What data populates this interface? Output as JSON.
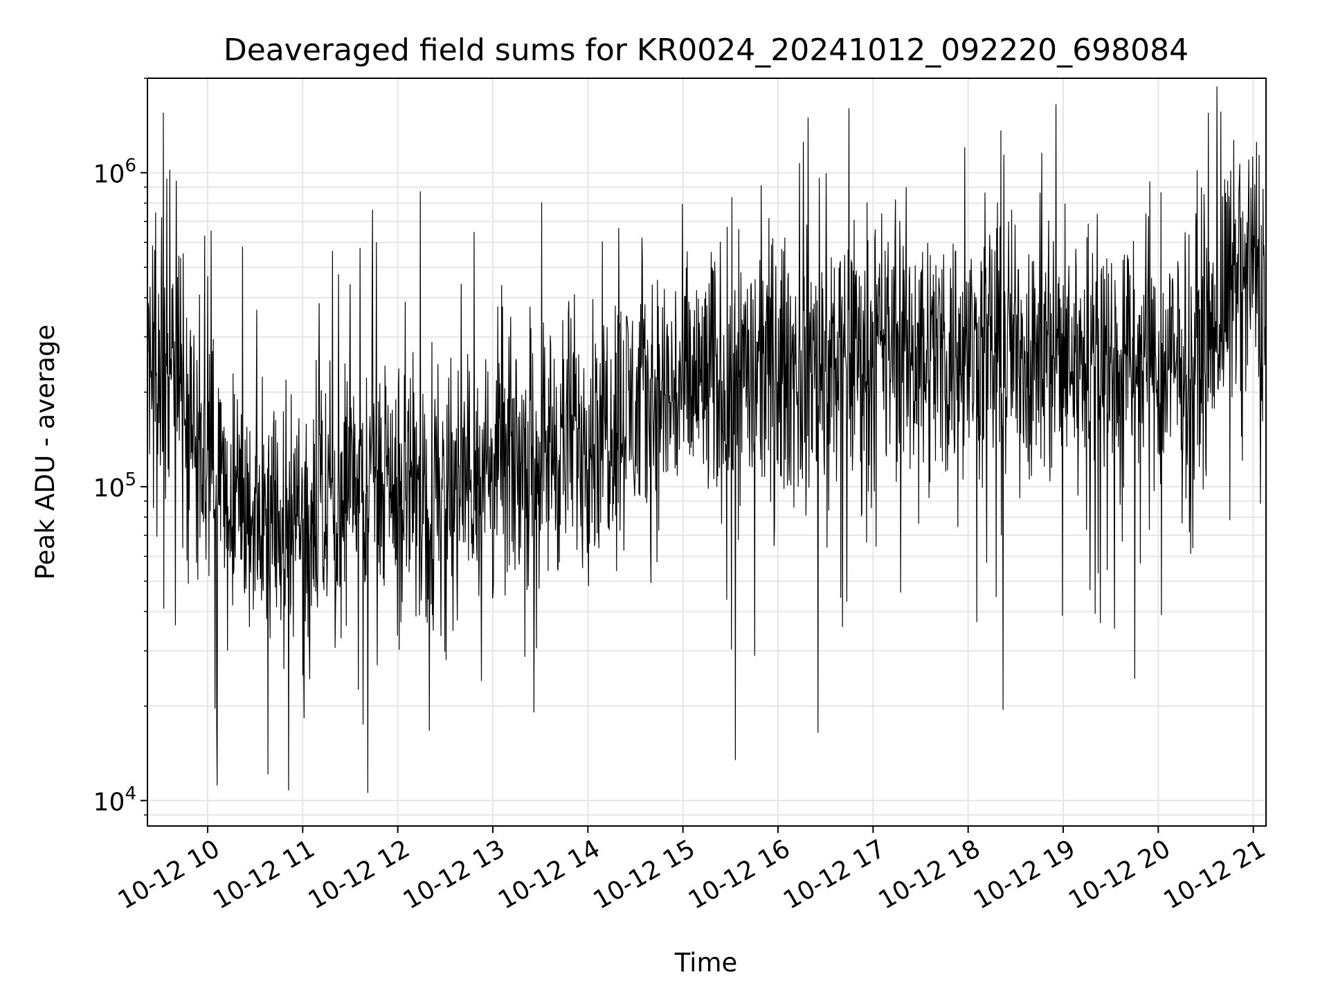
{
  "chart_data": {
    "type": "line",
    "title": "Deaveraged field sums for KR0024_20241012_092220_698084",
    "xlabel": "Time",
    "ylabel": "Peak ADU - average",
    "x_ticks": [
      "10-12 10",
      "10-12 11",
      "10-12 12",
      "10-12 13",
      "10-12 14",
      "10-12 15",
      "10-12 16",
      "10-12 17",
      "10-12 18",
      "10-12 19",
      "10-12 20",
      "10-12 21"
    ],
    "y_ticks": [
      {
        "base": "10",
        "exp": "4",
        "value": 10000
      },
      {
        "base": "10",
        "exp": "5",
        "value": 100000
      },
      {
        "base": "10",
        "exp": "6",
        "value": 1000000
      }
    ],
    "xlim": [
      "2024-10-12T09:22",
      "2024-10-12T21:08"
    ],
    "ylim": [
      8300,
      2000000
    ],
    "y_scale": "log",
    "grid": true,
    "line_color": "#000000",
    "series": [
      {
        "x": [
          "2024-10-12T09:22",
          "2024-10-12T09:45",
          "2024-10-12T10:15",
          "2024-10-12T10:45",
          "2024-10-12T11:15",
          "2024-10-12T11:45",
          "2024-10-12T12:15",
          "2024-10-12T12:45",
          "2024-10-12T13:15",
          "2024-10-12T13:45",
          "2024-10-12T14:15",
          "2024-10-12T14:45",
          "2024-10-12T15:15",
          "2024-10-12T15:45",
          "2024-10-12T16:15",
          "2024-10-12T16:45",
          "2024-10-12T17:15",
          "2024-10-12T17:45",
          "2024-10-12T18:15",
          "2024-10-12T18:45",
          "2024-10-12T19:15",
          "2024-10-12T19:45",
          "2024-10-12T20:15",
          "2024-10-12T20:45",
          "2024-10-12T21:08"
        ],
        "y": [
          260000,
          180000,
          80000,
          75000,
          90000,
          100000,
          90000,
          110000,
          120000,
          140000,
          170000,
          190000,
          215000,
          230000,
          240000,
          260000,
          280000,
          265000,
          270000,
          275000,
          255000,
          240000,
          230000,
          420000,
          480000
        ]
      }
    ],
    "spikes": [
      {
        "x": "2024-10-12T09:32",
        "y": 1550000
      },
      {
        "x": "2024-10-12T09:36",
        "y": 1020000
      },
      {
        "x": "2024-10-12T10:06",
        "y": 11200
      },
      {
        "x": "2024-10-12T10:22",
        "y": 580000
      },
      {
        "x": "2024-10-12T10:51",
        "y": 10800
      },
      {
        "x": "2024-10-12T11:41",
        "y": 10600
      },
      {
        "x": "2024-10-12T11:44",
        "y": 760000
      },
      {
        "x": "2024-10-12T12:14",
        "y": 870000
      },
      {
        "x": "2024-10-12T14:34",
        "y": 620000
      },
      {
        "x": "2024-10-12T15:33",
        "y": 13500
      },
      {
        "x": "2024-10-12T15:35",
        "y": 660000
      },
      {
        "x": "2024-10-12T16:25",
        "y": 16500
      },
      {
        "x": "2024-10-12T16:26",
        "y": 960000
      },
      {
        "x": "2024-10-12T17:14",
        "y": 820000
      },
      {
        "x": "2024-10-12T18:22",
        "y": 19500
      },
      {
        "x": "2024-10-12T19:45",
        "y": 24500
      },
      {
        "x": "2024-10-12T20:51",
        "y": 940000
      },
      {
        "x": "2024-10-12T21:02",
        "y": 1250000
      }
    ]
  }
}
